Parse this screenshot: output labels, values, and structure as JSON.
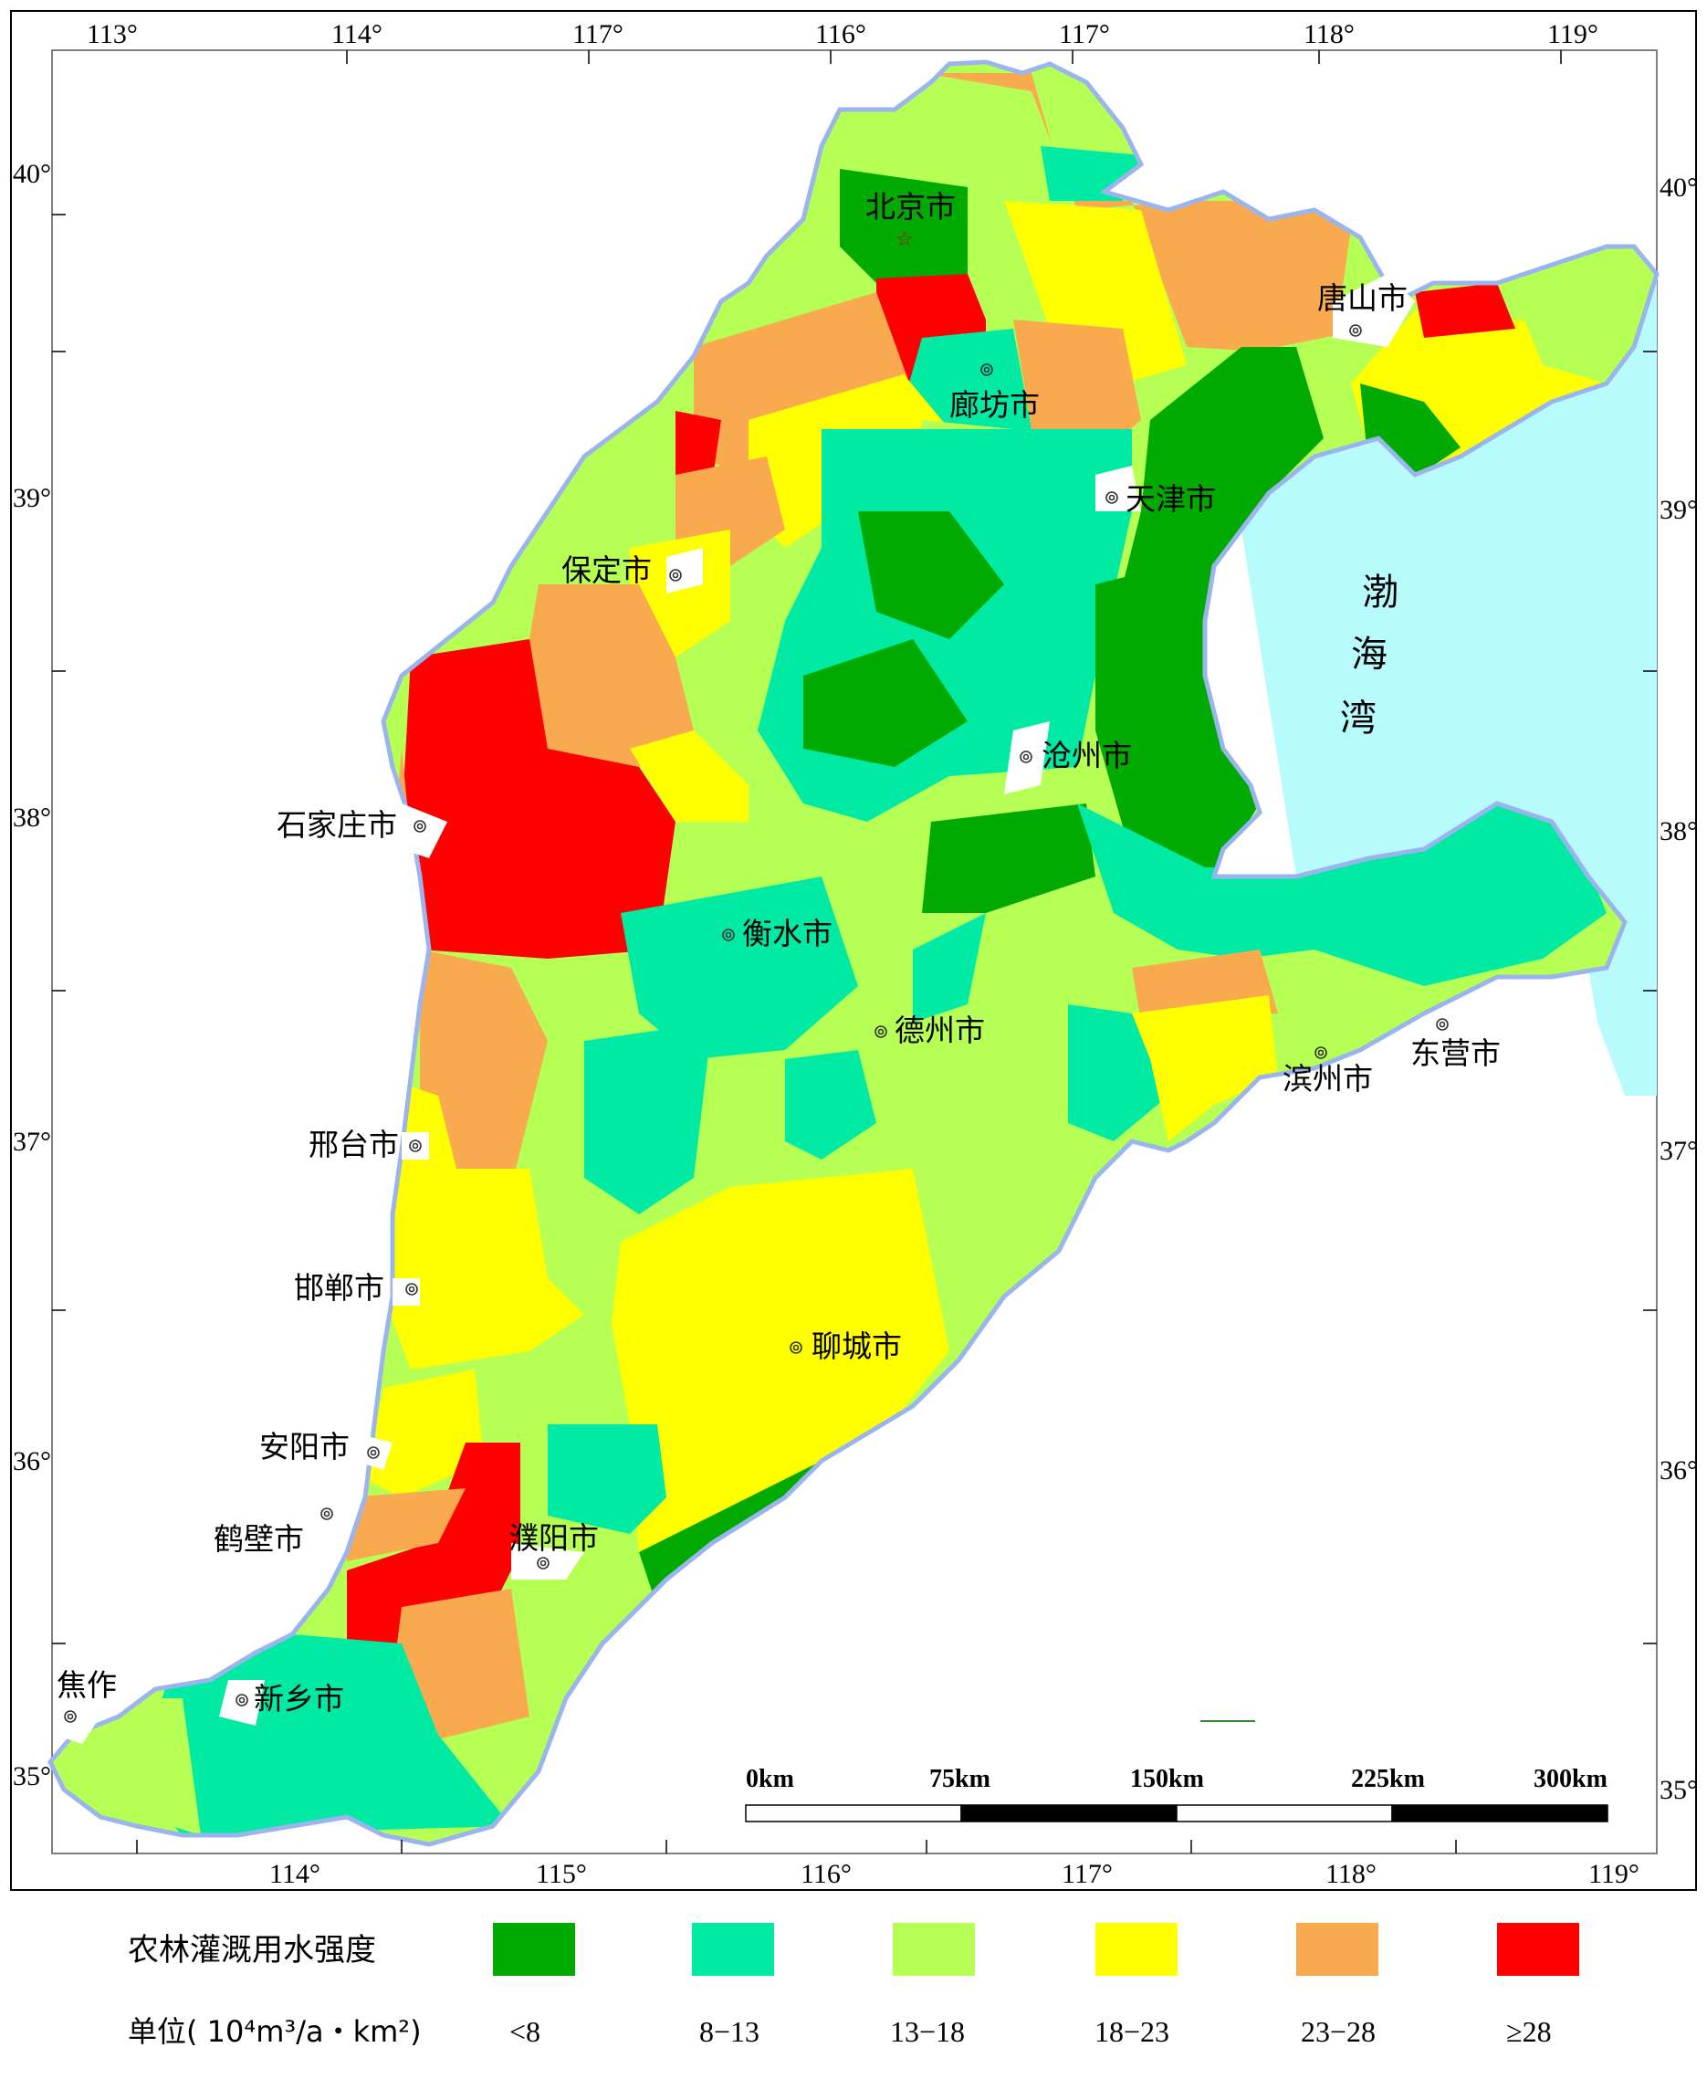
{
  "colors": {
    "lt8": "#00aa00",
    "c8_13": "#00eaa4",
    "c13_18": "#b6ff55",
    "c18_23": "#ffff00",
    "c23_28": "#f9aa4f",
    "ge28": "#ff0000",
    "sea": "#b7fbfd",
    "coast": "#9ab4ee"
  },
  "ticks": {
    "top": [
      "113°",
      "114°",
      "117°",
      "116°",
      "117°",
      "118°",
      "119°"
    ],
    "bottom": [
      "114°",
      "115°",
      "116°",
      "117°",
      "118°",
      "119°"
    ],
    "left": [
      "40°",
      "39°",
      "38°",
      "37°",
      "36°",
      "35°"
    ],
    "right": [
      "40°",
      "39°",
      "38°",
      "37°",
      "36°",
      "35°"
    ]
  },
  "cities": {
    "beijing": "北京市",
    "tangshan": "唐山市",
    "langfang": "廊坊市",
    "tianjin": "天津市",
    "baoding": "保定市",
    "cangzhou": "沧州市",
    "shijiazhuang": "石家庄市",
    "hengshui": "衡水市",
    "dezhou": "德州市",
    "dongying": "东营市",
    "binzhou": "滨州市",
    "xingtai": "邢台市",
    "handan": "邯郸市",
    "liaocheng": "聊城市",
    "anyang": "安阳市",
    "hebi": "鹤壁市",
    "puyang": "濮阳市",
    "jiaozuo": "焦作",
    "xinxiang": "新乡市"
  },
  "sea": {
    "c1": "渤",
    "c2": "海",
    "c3": "湾"
  },
  "scale": {
    "s0": "0km",
    "s1": "75km",
    "s2": "150km",
    "s3": "225km",
    "s4": "300km"
  },
  "legend": {
    "title": "农林灌溉用水强度",
    "unit": "单位( 10⁴m³/a・km²)",
    "items": [
      {
        "label": "<8"
      },
      {
        "label": "8−13"
      },
      {
        "label": "13−18"
      },
      {
        "label": "18−23"
      },
      {
        "label": "23−28"
      },
      {
        "label": "≥28"
      }
    ]
  }
}
